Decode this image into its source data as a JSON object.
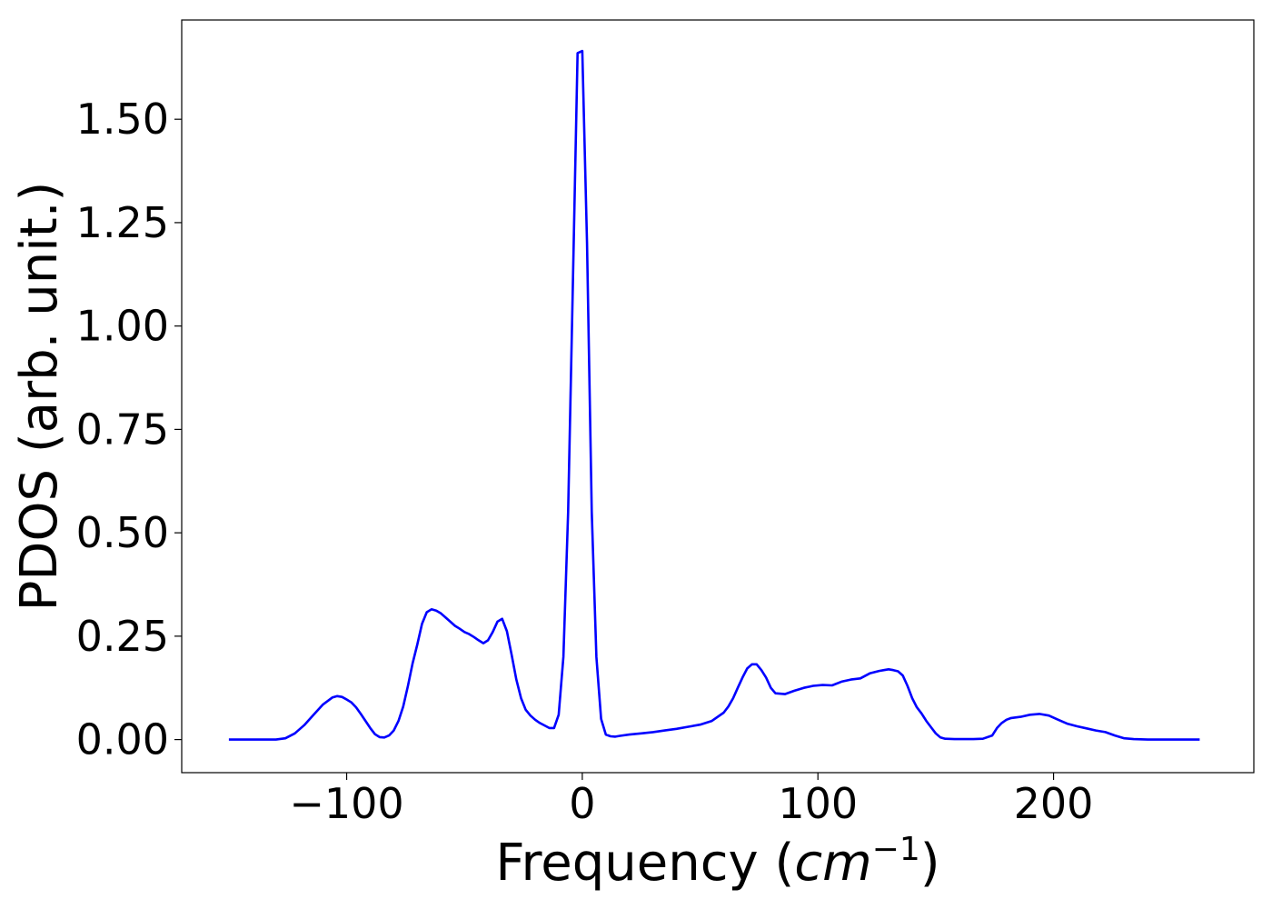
{
  "chart_data": {
    "type": "line",
    "title": "",
    "xlabel_text": "Frequency (",
    "xlabel_math": "cm",
    "xlabel_exp": "−1",
    "xlabel_close": ")",
    "ylabel": "PDOS (arb. unit.)",
    "xlim": [
      -170,
      285
    ],
    "ylim": [
      -0.08,
      1.74
    ],
    "grid": false,
    "legend": "none",
    "xticks": [
      {
        "value": -100,
        "label": "−100"
      },
      {
        "value": 0,
        "label": "0"
      },
      {
        "value": 100,
        "label": "100"
      },
      {
        "value": 200,
        "label": "200"
      }
    ],
    "yticks": [
      {
        "value": 0.0,
        "label": "0.00"
      },
      {
        "value": 0.25,
        "label": "0.25"
      },
      {
        "value": 0.5,
        "label": "0.50"
      },
      {
        "value": 0.75,
        "label": "0.75"
      },
      {
        "value": 1.0,
        "label": "1.00"
      },
      {
        "value": 1.25,
        "label": "1.25"
      },
      {
        "value": 1.5,
        "label": "1.50"
      }
    ],
    "series": [
      {
        "color": "#0000ff",
        "x": [
          -150,
          -140,
          -130,
          -126,
          -122,
          -118,
          -114,
          -110,
          -106,
          -104,
          -102,
          -100,
          -98,
          -96,
          -94,
          -92,
          -90,
          -88,
          -86,
          -84,
          -82,
          -80,
          -78,
          -76,
          -74,
          -72,
          -70,
          -68,
          -66,
          -64,
          -62,
          -60,
          -58,
          -56,
          -54,
          -52,
          -50,
          -48,
          -46,
          -44,
          -42,
          -40,
          -38,
          -36,
          -34,
          -32,
          -30,
          -28,
          -26,
          -24,
          -22,
          -20,
          -18,
          -16,
          -14,
          -12,
          -10,
          -8,
          -6,
          -4,
          -2,
          0,
          2,
          4,
          6,
          8,
          10,
          12,
          14,
          16,
          20,
          25,
          30,
          35,
          40,
          45,
          50,
          55,
          60,
          62,
          64,
          66,
          68,
          70,
          72,
          74,
          76,
          78,
          80,
          82,
          86,
          90,
          94,
          98,
          102,
          106,
          110,
          114,
          118,
          122,
          126,
          128,
          130,
          132,
          134,
          136,
          138,
          140,
          142,
          144,
          146,
          148,
          150,
          152,
          154,
          158,
          162,
          166,
          170,
          174,
          176,
          178,
          180,
          182,
          186,
          190,
          194,
          198,
          202,
          206,
          210,
          214,
          218,
          222,
          226,
          230,
          234,
          240,
          250,
          262
        ],
        "y": [
          0,
          0,
          0,
          0.003,
          0.015,
          0.035,
          0.06,
          0.085,
          0.102,
          0.105,
          0.103,
          0.097,
          0.09,
          0.078,
          0.062,
          0.045,
          0.028,
          0.013,
          0.006,
          0.005,
          0.01,
          0.022,
          0.045,
          0.08,
          0.13,
          0.185,
          0.23,
          0.28,
          0.308,
          0.315,
          0.312,
          0.305,
          0.295,
          0.285,
          0.275,
          0.268,
          0.26,
          0.255,
          0.248,
          0.24,
          0.233,
          0.24,
          0.26,
          0.285,
          0.292,
          0.262,
          0.205,
          0.145,
          0.1,
          0.072,
          0.058,
          0.048,
          0.04,
          0.034,
          0.028,
          0.028,
          0.06,
          0.2,
          0.55,
          1.1,
          1.66,
          1.665,
          1.2,
          0.55,
          0.2,
          0.05,
          0.012,
          0.008,
          0.007,
          0.009,
          0.012,
          0.015,
          0.018,
          0.022,
          0.026,
          0.031,
          0.036,
          0.045,
          0.065,
          0.08,
          0.1,
          0.125,
          0.15,
          0.172,
          0.182,
          0.182,
          0.168,
          0.15,
          0.125,
          0.112,
          0.11,
          0.118,
          0.125,
          0.13,
          0.132,
          0.131,
          0.14,
          0.145,
          0.148,
          0.16,
          0.166,
          0.168,
          0.17,
          0.168,
          0.165,
          0.155,
          0.13,
          0.1,
          0.078,
          0.063,
          0.045,
          0.03,
          0.015,
          0.005,
          0.002,
          0.001,
          0.001,
          0.001,
          0.002,
          0.01,
          0.028,
          0.04,
          0.048,
          0.052,
          0.055,
          0.06,
          0.062,
          0.058,
          0.048,
          0.038,
          0.032,
          0.027,
          0.022,
          0.018,
          0.01,
          0.003,
          0.001,
          0,
          0,
          0
        ]
      }
    ]
  }
}
